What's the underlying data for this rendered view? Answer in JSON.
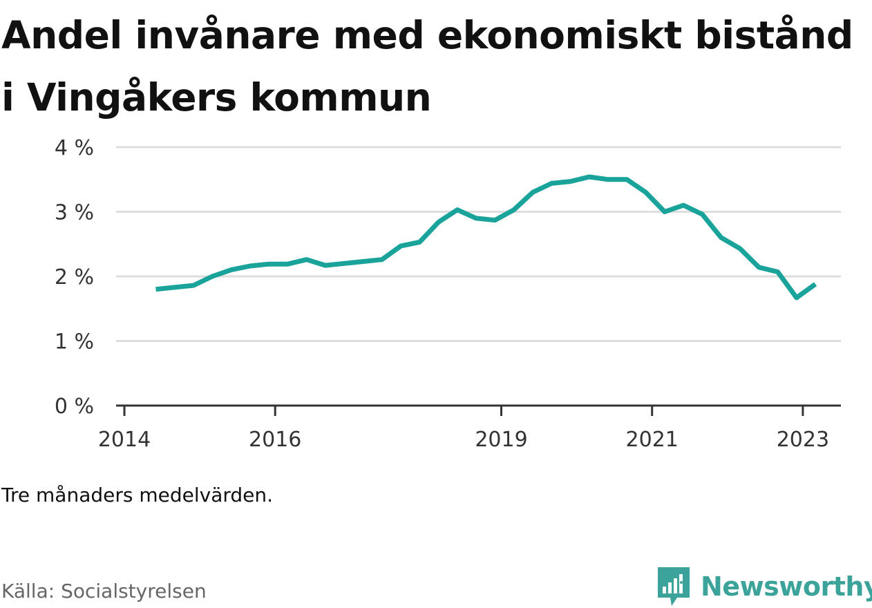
{
  "title": "Andel invånare med ekonomiskt bistånd i Vingåkers kommun",
  "note": "Tre månaders medelvärden.",
  "source": "Källa: Socialstyrelsen",
  "brand": {
    "name": "Newsworthy",
    "icon": "newsworthy-logo-icon",
    "color": "#3ba39a"
  },
  "colors": {
    "line": "#1aa39a",
    "grid": "#dddddd",
    "axis": "#333333"
  },
  "chart_data": {
    "type": "line",
    "title": "Andel invånare med ekonomiskt bistånd i Vingåkers kommun",
    "xlabel": "",
    "ylabel": "",
    "ylim": [
      0,
      4
    ],
    "y_ticks": [
      "0 %",
      "1 %",
      "2 %",
      "3 %",
      "4 %"
    ],
    "x_ticks": [
      "2014",
      "2016",
      "2019",
      "2021",
      "2023"
    ],
    "grid": true,
    "series": [
      {
        "values": [
          {
            "x": "2014-06",
            "y": 1.8
          },
          {
            "x": "2014-09",
            "y": 1.83
          },
          {
            "x": "2014-12",
            "y": 1.86
          },
          {
            "x": "2015-03",
            "y": 2.0
          },
          {
            "x": "2015-06",
            "y": 2.1
          },
          {
            "x": "2015-09",
            "y": 2.16
          },
          {
            "x": "2015-12",
            "y": 2.19
          },
          {
            "x": "2016-03",
            "y": 2.19
          },
          {
            "x": "2016-06",
            "y": 2.26
          },
          {
            "x": "2016-09",
            "y": 2.17
          },
          {
            "x": "2016-12",
            "y": 2.2
          },
          {
            "x": "2017-03",
            "y": 2.23
          },
          {
            "x": "2017-06",
            "y": 2.26
          },
          {
            "x": "2017-09",
            "y": 2.47
          },
          {
            "x": "2017-12",
            "y": 2.53
          },
          {
            "x": "2018-03",
            "y": 2.84
          },
          {
            "x": "2018-06",
            "y": 3.03
          },
          {
            "x": "2018-09",
            "y": 2.9
          },
          {
            "x": "2018-12",
            "y": 2.87
          },
          {
            "x": "2019-03",
            "y": 3.03
          },
          {
            "x": "2019-06",
            "y": 3.3
          },
          {
            "x": "2019-09",
            "y": 3.44
          },
          {
            "x": "2019-12",
            "y": 3.47
          },
          {
            "x": "2020-03",
            "y": 3.54
          },
          {
            "x": "2020-06",
            "y": 3.5
          },
          {
            "x": "2020-09",
            "y": 3.5
          },
          {
            "x": "2020-12",
            "y": 3.3
          },
          {
            "x": "2021-03",
            "y": 3.0
          },
          {
            "x": "2021-06",
            "y": 3.1
          },
          {
            "x": "2021-09",
            "y": 2.96
          },
          {
            "x": "2021-12",
            "y": 2.6
          },
          {
            "x": "2022-03",
            "y": 2.43
          },
          {
            "x": "2022-06",
            "y": 2.14
          },
          {
            "x": "2022-09",
            "y": 2.07
          },
          {
            "x": "2022-12",
            "y": 1.67
          },
          {
            "x": "2023-03",
            "y": 1.88
          }
        ]
      }
    ]
  }
}
